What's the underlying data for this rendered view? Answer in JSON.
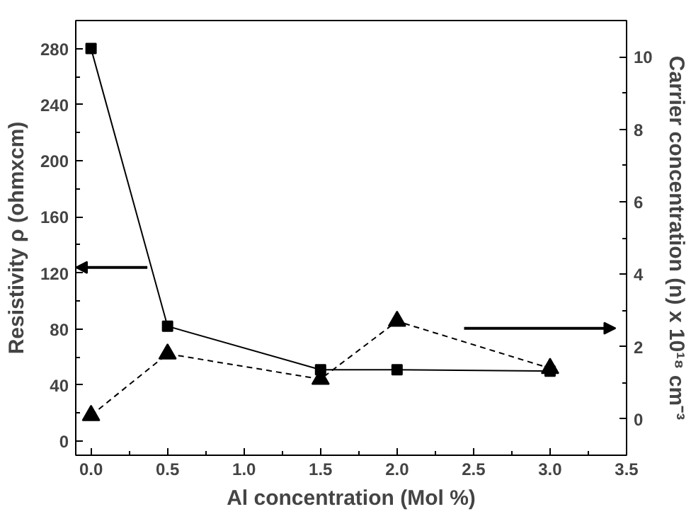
{
  "chart_data": {
    "type": "line",
    "xlabel": "Al concentration (Mol %)",
    "ylabel": "Resistivity ρ (ohmxcm)",
    "y2label": "Carrier concentration (n) x 10¹⁸ cm⁻³",
    "x": [
      0.0,
      0.5,
      1.5,
      2.0,
      3.0
    ],
    "series": [
      {
        "color": "#000000",
        "values": [
          280,
          82,
          51,
          51,
          50
        ],
        "marker": "square",
        "line_style": "solid"
      },
      {
        "color": "#000000",
        "values": [
          0.1,
          1.8,
          1.1,
          2.7,
          1.4
        ],
        "marker": "triangle",
        "line_style": "dashed",
        "axis": "y2"
      }
    ],
    "xlim": [
      -0.1,
      3.5
    ],
    "xticks": [
      {
        "value": 0,
        "label": "0.0"
      },
      {
        "value": 0.5,
        "label": "0.5"
      },
      {
        "value": 1,
        "label": "1.0"
      },
      {
        "value": 1.5,
        "label": "1.5"
      },
      {
        "value": 2,
        "label": "2.0"
      },
      {
        "value": 2.5,
        "label": "2.5"
      },
      {
        "value": 3,
        "label": "3.0"
      },
      {
        "value": 3.5,
        "label": "3.5"
      }
    ],
    "ylim": [
      -10,
      300
    ],
    "yticks": [
      0,
      40,
      80,
      120,
      160,
      200,
      240,
      280
    ],
    "y2lim": [
      -1,
      11
    ],
    "y2ticks": [
      0,
      2,
      4,
      6,
      8,
      10
    ],
    "grid": false
  }
}
